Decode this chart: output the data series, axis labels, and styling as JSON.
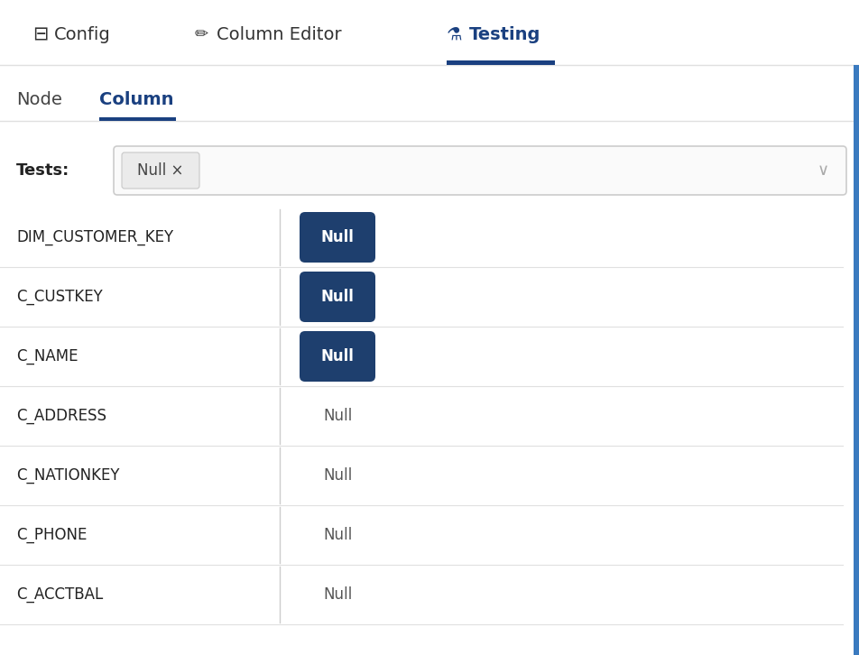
{
  "bg_color": "#ffffff",
  "tab_border_color": "#e0e0e0",
  "active_tab_color": "#1a4080",
  "inactive_tab_color": "#333333",
  "active_underline_color": "#1a4080",
  "sub_tab_active_color": "#1a4080",
  "sub_tab_inactive_color": "#444444",
  "tests_label": "Tests:",
  "tests_pill_text": "Null ×",
  "tests_pill_bg": "#ebebeb",
  "tests_pill_text_color": "#444444",
  "dropdown_border_color": "#cccccc",
  "rows": [
    {
      "col_name": "DIM_CUSTOMER_KEY",
      "null_label": "Null",
      "active": true
    },
    {
      "col_name": "C_CUSTKEY",
      "null_label": "Null",
      "active": true
    },
    {
      "col_name": "C_NAME",
      "null_label": "Null",
      "active": true
    },
    {
      "col_name": "C_ADDRESS",
      "null_label": "Null",
      "active": false
    },
    {
      "col_name": "C_NATIONKEY",
      "null_label": "Null",
      "active": false
    },
    {
      "col_name": "C_PHONE",
      "null_label": "Null",
      "active": false
    },
    {
      "col_name": "C_ACCTBAL",
      "null_label": "Null",
      "active": false
    }
  ],
  "active_btn_bg": "#1e3f6e",
  "active_btn_text_color": "#ffffff",
  "inactive_null_text_color": "#555555",
  "row_divider_color": "#e0e0e0",
  "col_divider_color": "#cccccc",
  "right_border_color": "#3a7abf",
  "fig_width": 9.52,
  "fig_height": 7.26,
  "dpi": 100
}
